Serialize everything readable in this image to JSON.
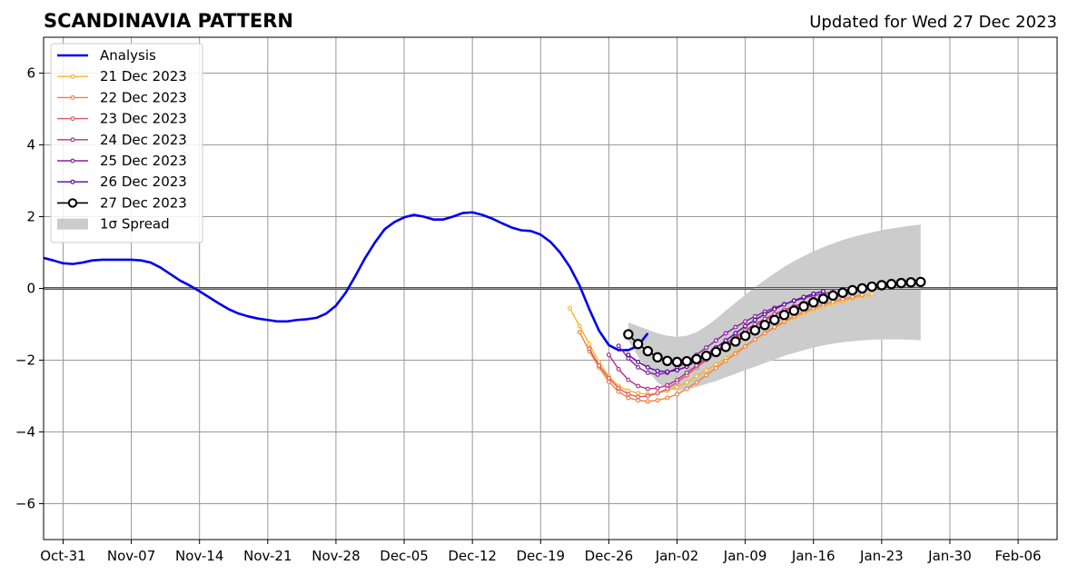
{
  "chart_data": {
    "type": "line",
    "title": "SCANDINAVIA PATTERN",
    "subtitle": "Updated for Wed 27 Dec 2023",
    "xlabel": "",
    "ylabel": "",
    "xlim": [
      "2023-10-29",
      "2024-02-10"
    ],
    "ylim": [
      -7,
      7
    ],
    "x_ticks": [
      "2023-10-31",
      "2023-11-07",
      "2023-11-14",
      "2023-11-21",
      "2023-11-28",
      "2023-12-05",
      "2023-12-12",
      "2023-12-19",
      "2023-12-26",
      "2024-01-02",
      "2024-01-09",
      "2024-01-16",
      "2024-01-23",
      "2024-01-30",
      "2024-02-06"
    ],
    "x_tick_labels": [
      "Oct-31",
      "Nov-07",
      "Nov-14",
      "Nov-21",
      "Nov-28",
      "Dec-05",
      "Dec-12",
      "Dec-19",
      "Dec-26",
      "Jan-02",
      "Jan-09",
      "Jan-16",
      "Jan-23",
      "Jan-30",
      "Feb-06"
    ],
    "y_ticks": [
      -6,
      -4,
      -2,
      0,
      2,
      4,
      6
    ],
    "y_tick_labels": [
      "−6",
      "−4",
      "−2",
      "0",
      "2",
      "4",
      "6"
    ],
    "grid": true,
    "legend_position": "top-left",
    "colors": {
      "analysis": "#0000ee",
      "spread": "#cccccc",
      "zero_line": "#555555",
      "grid": "#999999"
    },
    "analysis": {
      "name": "Analysis",
      "start": "2023-10-29",
      "values": [
        0.85,
        0.78,
        0.7,
        0.68,
        0.72,
        0.78,
        0.8,
        0.8,
        0.8,
        0.8,
        0.78,
        0.72,
        0.58,
        0.4,
        0.22,
        0.08,
        -0.08,
        -0.25,
        -0.42,
        -0.58,
        -0.7,
        -0.78,
        -0.84,
        -0.88,
        -0.92,
        -0.92,
        -0.88,
        -0.86,
        -0.82,
        -0.7,
        -0.48,
        -0.12,
        0.35,
        0.85,
        1.28,
        1.65,
        1.85,
        1.98,
        2.05,
        2.0,
        1.92,
        1.92,
        2.0,
        2.1,
        2.12,
        2.05,
        1.95,
        1.82,
        1.7,
        1.62,
        1.6,
        1.5,
        1.3,
        1.0,
        0.6,
        0.08,
        -0.58,
        -1.18,
        -1.58,
        -1.72,
        -1.72,
        -1.6,
        -1.25
      ]
    },
    "forecasts": [
      {
        "name": "21 Dec 2023",
        "color": "#fcb227",
        "start": "2023-12-22",
        "values": [
          -0.55,
          -1.05,
          -1.55,
          -2.05,
          -2.45,
          -2.72,
          -2.85,
          -2.92,
          -2.95,
          -2.92,
          -2.85,
          -2.75,
          -2.62,
          -2.45,
          -2.28,
          -2.12,
          -1.95,
          -1.78,
          -1.6,
          -1.42,
          -1.25,
          -1.1,
          -0.95,
          -0.82,
          -0.7,
          -0.6,
          -0.5,
          -0.42,
          -0.35,
          -0.28,
          -0.22,
          -0.16
        ]
      },
      {
        "name": "22 Dec 2023",
        "color": "#f4803a",
        "start": "2023-12-23",
        "values": [
          -1.22,
          -1.75,
          -2.2,
          -2.6,
          -2.88,
          -3.05,
          -3.12,
          -3.15,
          -3.12,
          -3.05,
          -2.95,
          -2.8,
          -2.62,
          -2.42,
          -2.22,
          -2.02,
          -1.82,
          -1.62,
          -1.42,
          -1.25,
          -1.08,
          -0.92,
          -0.78,
          -0.65,
          -0.55,
          -0.45,
          -0.37,
          -0.3,
          -0.24,
          -0.18
        ]
      },
      {
        "name": "23 Dec 2023",
        "color": "#dc5b69",
        "start": "2023-12-24",
        "values": [
          -1.68,
          -2.15,
          -2.5,
          -2.78,
          -2.95,
          -3.02,
          -3.0,
          -2.92,
          -2.8,
          -2.62,
          -2.42,
          -2.2,
          -2.0,
          -1.8,
          -1.6,
          -1.4,
          -1.22,
          -1.05,
          -0.9,
          -0.76,
          -0.64,
          -0.54,
          -0.45,
          -0.37,
          -0.3,
          -0.24,
          -0.19,
          -0.14
        ]
      },
      {
        "name": "24 Dec 2023",
        "color": "#b42f8b",
        "start": "2023-12-26",
        "values": [
          -1.85,
          -2.25,
          -2.55,
          -2.72,
          -2.8,
          -2.78,
          -2.7,
          -2.55,
          -2.35,
          -2.15,
          -1.95,
          -1.75,
          -1.55,
          -1.35,
          -1.17,
          -1.0,
          -0.85,
          -0.72,
          -0.6,
          -0.5,
          -0.41,
          -0.33,
          -0.26,
          -0.2,
          -0.15,
          -0.11
        ]
      },
      {
        "name": "25 Dec 2023",
        "color": "#8c1ea0",
        "start": "2023-12-27",
        "values": [
          -1.6,
          -1.95,
          -2.2,
          -2.35,
          -2.4,
          -2.35,
          -2.22,
          -2.05,
          -1.85,
          -1.65,
          -1.45,
          -1.25,
          -1.08,
          -0.92,
          -0.78,
          -0.65,
          -0.54,
          -0.44,
          -0.35,
          -0.27,
          -0.2,
          -0.15,
          -0.1
        ]
      },
      {
        "name": "26 Dec 2023",
        "color": "#56079b",
        "start": "2023-12-28",
        "values": [
          -1.85,
          -2.05,
          -2.2,
          -2.3,
          -2.32,
          -2.28,
          -2.18,
          -2.02,
          -1.85,
          -1.65,
          -1.45,
          -1.25,
          -1.05,
          -0.88,
          -0.72,
          -0.58,
          -0.45,
          -0.34,
          -0.24,
          -0.15,
          -0.08
        ]
      }
    ],
    "latest": {
      "name": "27 Dec 2023",
      "color": "#000000",
      "start": "2023-12-28",
      "values": [
        -1.28,
        -1.55,
        -1.75,
        -1.92,
        -2.02,
        -2.05,
        -2.03,
        -1.97,
        -1.88,
        -1.77,
        -1.63,
        -1.48,
        -1.32,
        -1.17,
        -1.02,
        -0.88,
        -0.74,
        -0.62,
        -0.5,
        -0.39,
        -0.29,
        -0.2,
        -0.12,
        -0.05,
        0.0,
        0.05,
        0.09,
        0.12,
        0.15,
        0.17,
        0.18
      ]
    },
    "spread": {
      "name": "1σ Spread",
      "start": "2023-12-28",
      "upper": [
        -0.95,
        -1.05,
        -1.15,
        -1.25,
        -1.32,
        -1.35,
        -1.32,
        -1.22,
        -1.05,
        -0.85,
        -0.62,
        -0.4,
        -0.18,
        0.03,
        0.23,
        0.42,
        0.6,
        0.76,
        0.9,
        1.03,
        1.15,
        1.25,
        1.35,
        1.43,
        1.5,
        1.56,
        1.62,
        1.67,
        1.71,
        1.75,
        1.78
      ],
      "lower": [
        -1.45,
        -1.9,
        -2.3,
        -2.62,
        -2.8,
        -2.85,
        -2.82,
        -2.75,
        -2.66,
        -2.58,
        -2.48,
        -2.38,
        -2.28,
        -2.18,
        -2.08,
        -1.98,
        -1.88,
        -1.8,
        -1.72,
        -1.65,
        -1.59,
        -1.54,
        -1.5,
        -1.47,
        -1.45,
        -1.43,
        -1.42,
        -1.42,
        -1.42,
        -1.43,
        -1.45
      ]
    }
  }
}
